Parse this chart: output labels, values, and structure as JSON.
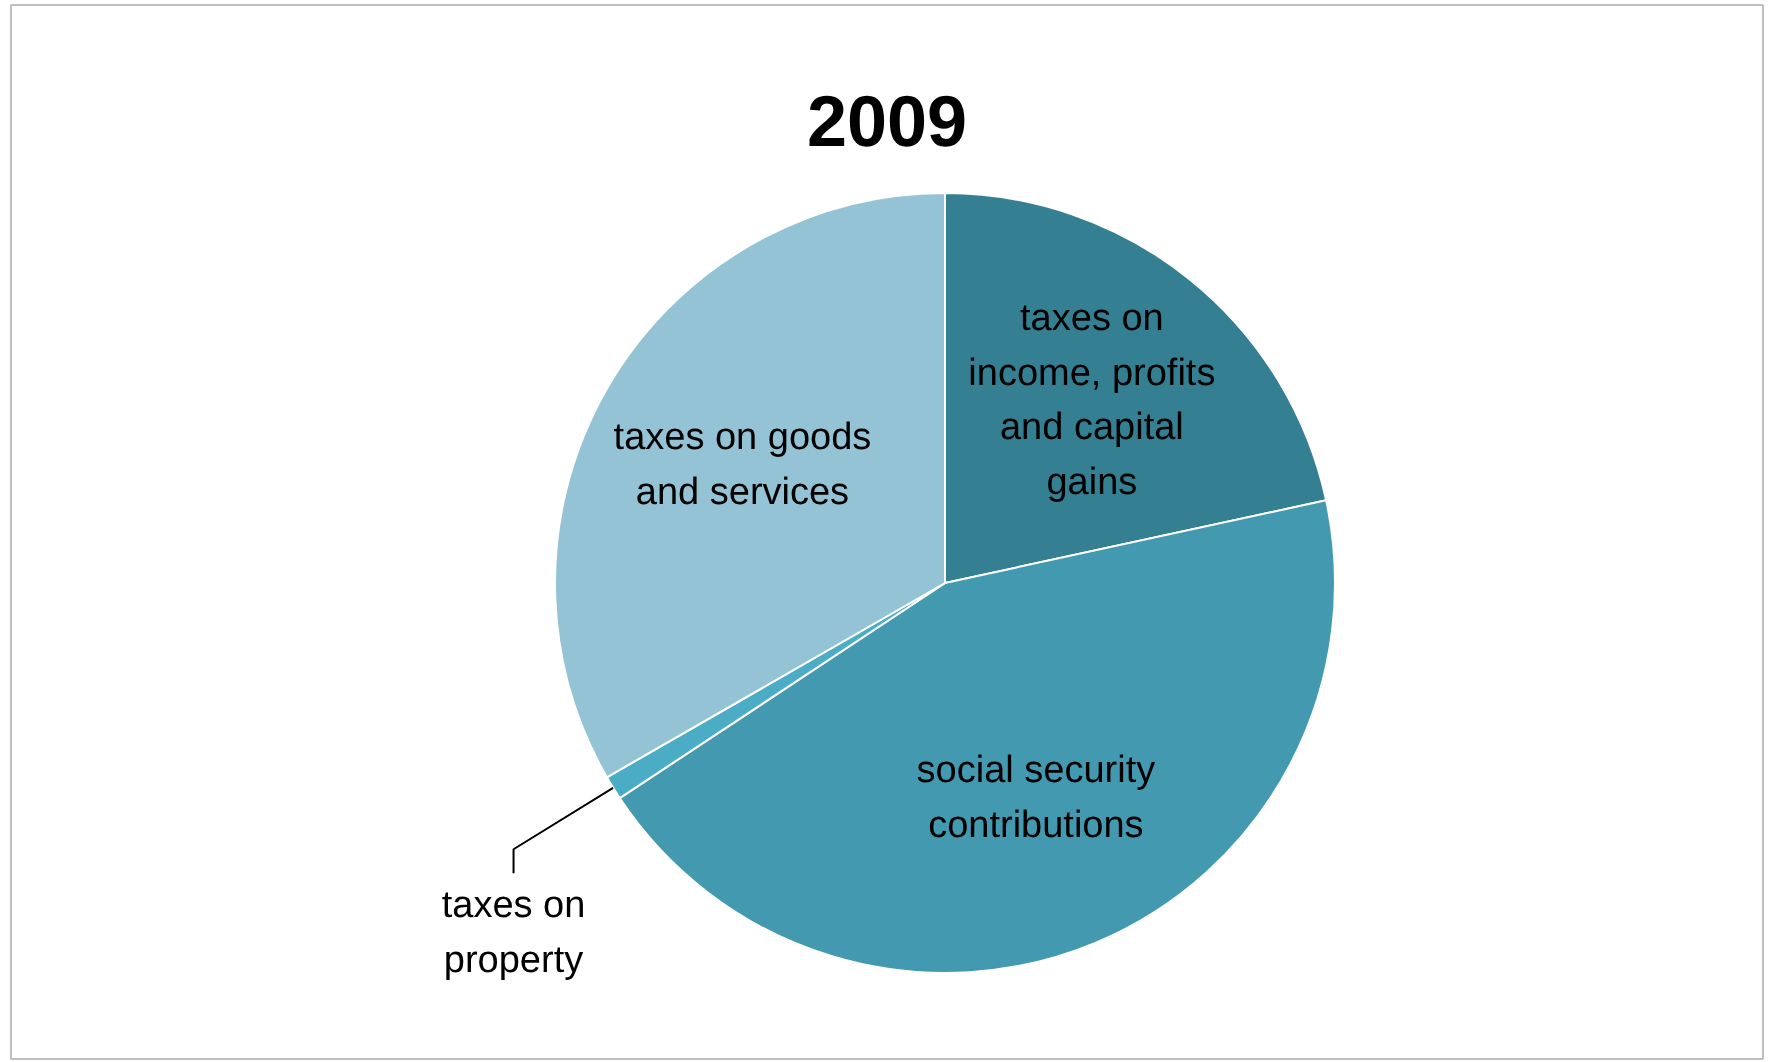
{
  "chart_data": {
    "type": "pie",
    "title": "2009",
    "categories": [
      "taxes on income, profits and capital gains",
      "social security contributions",
      "taxes on property",
      "taxes on goods and services"
    ],
    "values": [
      21.6,
      44.1,
      1.0,
      33.3
    ],
    "colors": [
      "#357f93",
      "#4399b0",
      "#4bacc6",
      "#93c3d4"
    ]
  }
}
